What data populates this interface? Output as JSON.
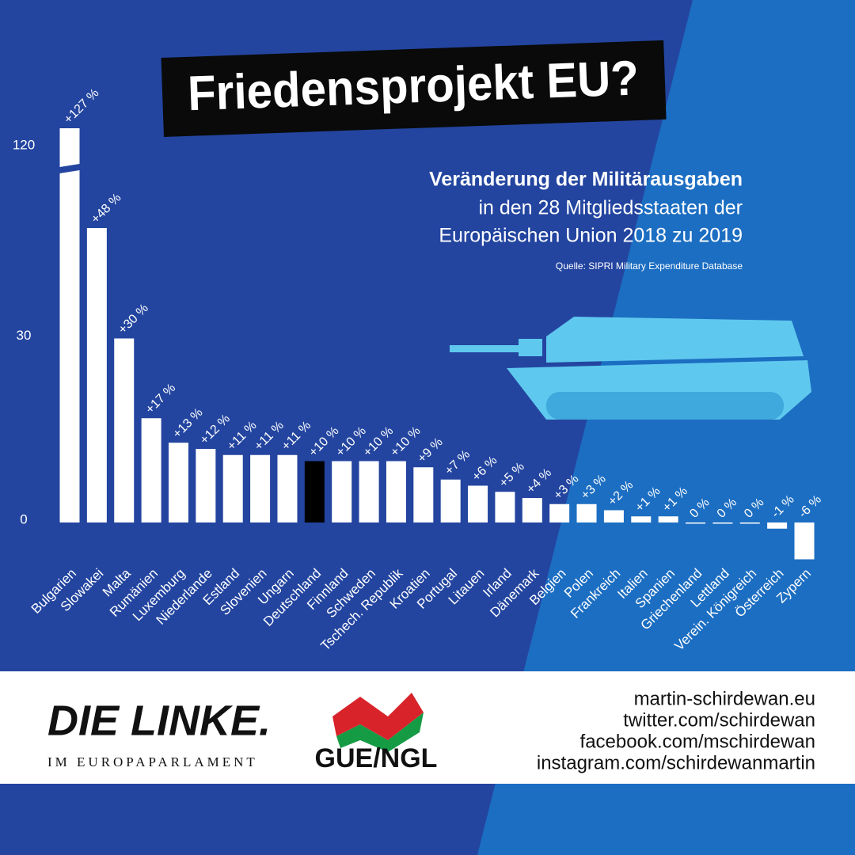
{
  "chart_data": {
    "type": "bar",
    "title": "Friedensprojekt EU?",
    "subtitle": [
      "Veränderung der Militärausgaben",
      "in den 28 Mitgliedsstaaten der",
      "Europäischen Union 2018 zu 2019"
    ],
    "source": "Quelle: SIPRI Military Expenditure Database",
    "categories": [
      "Bulgarien",
      "Slowakei",
      "Malta",
      "Rumänien",
      "Luxemburg",
      "Niederlande",
      "Estland",
      "Slovenien",
      "Ungarn",
      "Deutschland",
      "Finnland",
      "Schweden",
      "Tschech. Republik",
      "Kroatien",
      "Portugal",
      "Litauen",
      "Irland",
      "Dänemark",
      "Belgien",
      "Polen",
      "Frankreich",
      "Italien",
      "Spanien",
      "Griechenland",
      "Lettland",
      "Verein. Königreich",
      "Österreich",
      "Zypern"
    ],
    "values": [
      127,
      48,
      30,
      17,
      13,
      12,
      11,
      11,
      11,
      10,
      10,
      10,
      10,
      9,
      7,
      6,
      5,
      4,
      3,
      3,
      2,
      1,
      1,
      0,
      0,
      0,
      -1,
      -6
    ],
    "value_labels": [
      "+127 %",
      "+48 %",
      "+30 %",
      "+17 %",
      "+13 %",
      "+12 %",
      "+11 %",
      "+11 %",
      "+11 %",
      "+10 %",
      "+10 %",
      "+10 %",
      "+10 %",
      "+9 %",
      "+7 %",
      "+6 %",
      "+5 %",
      "+4 %",
      "+3 %",
      "+3 %",
      "+2 %",
      "+1 %",
      "+1 %",
      "0 %",
      "0 %",
      "0 %",
      "-1 %",
      "-6 %"
    ],
    "colors": [
      "#ffffff",
      "#ffffff",
      "#ffffff",
      "#ffffff",
      "#ffffff",
      "#ffffff",
      "#ffffff",
      "#ffffff",
      "#ffffff",
      "#000000",
      "#ffffff",
      "#ffffff",
      "#ffffff",
      "#ffffff",
      "#ffffff",
      "#ffffff",
      "#ffffff",
      "#ffffff",
      "#ffffff",
      "#ffffff",
      "#ffffff",
      "#ffffff",
      "#ffffff",
      "#ffffff",
      "#ffffff",
      "#ffffff",
      "#ffffff",
      "#ffffff"
    ],
    "ylim": [
      -6,
      127
    ],
    "yticks": [
      0,
      30,
      120
    ],
    "axis_break": true,
    "grid": false
  },
  "footer": {
    "logo_left": "DIE LINKE.",
    "logo_left_sub": "IM EUROPAPARLAMENT",
    "logo_right": "GUE/NGL",
    "links": [
      "martin-schirdewan.eu",
      "twitter.com/schirdewan",
      "facebook.com/mschirdewan",
      "instagram.com/schirdewanmartin"
    ]
  }
}
